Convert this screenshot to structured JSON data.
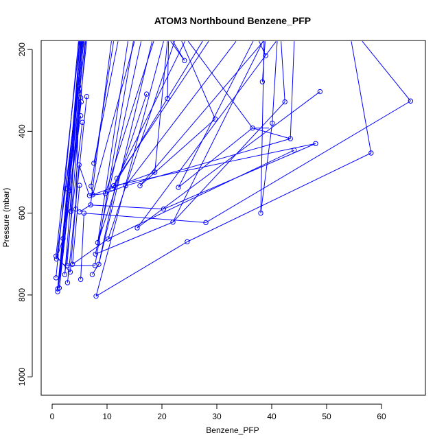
{
  "chart_data": {
    "type": "line",
    "title": "ATOM3 Northbound Benzene_PFP",
    "xlabel": "Benzene_PFP",
    "ylabel": "Pressure (mbar)",
    "xlim": [
      -2,
      68
    ],
    "ylim": [
      1045,
      178
    ],
    "y_reversed": true,
    "x_ticks": [
      0,
      10,
      20,
      30,
      40,
      50,
      60
    ],
    "y_ticks": [
      200,
      400,
      600,
      800,
      1000
    ],
    "grid": false,
    "line_color": "#0000ff",
    "marker": "open-circle",
    "points": [
      [
        0.7,
        705
      ],
      [
        0.8,
        712
      ],
      [
        0.7,
        758
      ],
      [
        1.0,
        785
      ],
      [
        1.0,
        792
      ],
      [
        1.3,
        783
      ],
      [
        2.0,
        662
      ],
      [
        2.3,
        750
      ],
      [
        2.5,
        540
      ],
      [
        2.7,
        728
      ],
      [
        2.8,
        770
      ],
      [
        3.1,
        545
      ],
      [
        3.3,
        744
      ],
      [
        3.4,
        596
      ],
      [
        3.7,
        725
      ],
      [
        4.3,
        590
      ],
      [
        4.8,
        290
      ],
      [
        4.8,
        302
      ],
      [
        4.9,
        482
      ],
      [
        5.0,
        532
      ],
      [
        5.0,
        597
      ],
      [
        5.2,
        318
      ],
      [
        5.3,
        328
      ],
      [
        5.5,
        378
      ],
      [
        5.2,
        362
      ],
      [
        5.2,
        762
      ],
      [
        5.8,
        600
      ],
      [
        6.3,
        315
      ],
      [
        6.8,
        557
      ],
      [
        7.0,
        580
      ],
      [
        7.1,
        534
      ],
      [
        7.3,
        750
      ],
      [
        7.4,
        555
      ],
      [
        7.6,
        478
      ],
      [
        7.8,
        728
      ],
      [
        7.9,
        700
      ],
      [
        8.0,
        803
      ],
      [
        8.3,
        672
      ],
      [
        8.5,
        725
      ],
      [
        9.7,
        552
      ],
      [
        10.2,
        663
      ],
      [
        10.9,
        540
      ],
      [
        11.2,
        533
      ],
      [
        11.8,
        515
      ],
      [
        13.4,
        533
      ],
      [
        15.5,
        636
      ],
      [
        16.0,
        533
      ],
      [
        17.2,
        309
      ],
      [
        18.7,
        500
      ],
      [
        20.3,
        590
      ],
      [
        21.0,
        320
      ],
      [
        22.0,
        622
      ],
      [
        23.0,
        537
      ],
      [
        24.1,
        227
      ],
      [
        24.6,
        670
      ],
      [
        28.0,
        623
      ],
      [
        29.7,
        370
      ],
      [
        36.5,
        392
      ],
      [
        38.0,
        600
      ],
      [
        38.3,
        279
      ],
      [
        38.9,
        215
      ],
      [
        40.1,
        380
      ],
      [
        42.4,
        328
      ],
      [
        43.4,
        418
      ],
      [
        44.1,
        446
      ],
      [
        48.0,
        430
      ],
      [
        48.8,
        303
      ],
      [
        58.1,
        453
      ],
      [
        65.3,
        326
      ]
    ],
    "segments": [
      [
        [
          0.7,
          705
        ],
        [
          5.0,
          180
        ]
      ],
      [
        [
          0.8,
          712
        ],
        [
          5.8,
          180
        ]
      ],
      [
        [
          1.0,
          785
        ],
        [
          5.3,
          180
        ]
      ],
      [
        [
          0.7,
          758
        ],
        [
          4.8,
          180
        ]
      ],
      [
        [
          1.0,
          792
        ],
        [
          6.0,
          180
        ]
      ],
      [
        [
          1.3,
          783
        ],
        [
          6.3,
          180
        ]
      ],
      [
        [
          1.3,
          783
        ],
        [
          5.1,
          180
        ]
      ],
      [
        [
          2.0,
          662
        ],
        [
          5.5,
          180
        ]
      ],
      [
        [
          2.3,
          750
        ],
        [
          5.7,
          180
        ]
      ],
      [
        [
          2.5,
          540
        ],
        [
          5.6,
          180
        ]
      ],
      [
        [
          2.7,
          728
        ],
        [
          6.1,
          180
        ]
      ],
      [
        [
          3.1,
          545
        ],
        [
          5.4,
          180
        ]
      ],
      [
        [
          3.4,
          596
        ],
        [
          4.9,
          180
        ]
      ],
      [
        [
          4.3,
          590
        ],
        [
          5.2,
          180
        ]
      ],
      [
        [
          0.8,
          712
        ],
        [
          4.9,
          290
        ]
      ],
      [
        [
          1.0,
          785
        ],
        [
          4.8,
          302
        ]
      ],
      [
        [
          1.3,
          783
        ],
        [
          5.2,
          318
        ]
      ],
      [
        [
          1.0,
          792
        ],
        [
          5.3,
          328
        ]
      ],
      [
        [
          2.3,
          750
        ],
        [
          5.5,
          378
        ]
      ],
      [
        [
          2.8,
          770
        ],
        [
          6.3,
          315
        ]
      ],
      [
        [
          3.3,
          744
        ],
        [
          4.9,
          482
        ]
      ],
      [
        [
          3.7,
          725
        ],
        [
          5.0,
          532
        ]
      ],
      [
        [
          2.0,
          662
        ],
        [
          5.2,
          362
        ]
      ],
      [
        [
          5.2,
          762
        ],
        [
          5.8,
          600
        ]
      ],
      [
        [
          4.9,
          482
        ],
        [
          6.8,
          557
        ]
      ],
      [
        [
          7.6,
          478
        ],
        [
          12.0,
          180
        ]
      ],
      [
        [
          7.1,
          534
        ],
        [
          11.2,
          180
        ]
      ],
      [
        [
          7.0,
          580
        ],
        [
          10.8,
          180
        ]
      ],
      [
        [
          7.4,
          555
        ],
        [
          15.0,
          180
        ]
      ],
      [
        [
          7.9,
          700
        ],
        [
          16.2,
          180
        ]
      ],
      [
        [
          7.8,
          728
        ],
        [
          14.8,
          180
        ]
      ],
      [
        [
          8.3,
          672
        ],
        [
          13.8,
          180
        ]
      ],
      [
        [
          8.5,
          725
        ],
        [
          18.2,
          180
        ]
      ],
      [
        [
          9.7,
          552
        ],
        [
          18.5,
          180
        ]
      ],
      [
        [
          10.2,
          663
        ],
        [
          22.3,
          180
        ]
      ],
      [
        [
          8.0,
          803
        ],
        [
          20.3,
          180
        ]
      ],
      [
        [
          10.9,
          540
        ],
        [
          27.4,
          180
        ]
      ],
      [
        [
          11.2,
          533
        ],
        [
          24.2,
          180
        ]
      ],
      [
        [
          11.8,
          515
        ],
        [
          28.5,
          180
        ]
      ],
      [
        [
          13.4,
          533
        ],
        [
          33.5,
          180
        ]
      ],
      [
        [
          15.5,
          636
        ],
        [
          40.8,
          180
        ]
      ],
      [
        [
          16.0,
          533
        ],
        [
          38.5,
          180
        ]
      ],
      [
        [
          18.7,
          500
        ],
        [
          21.0,
          180
        ]
      ],
      [
        [
          21.0,
          320
        ],
        [
          21.2,
          180
        ]
      ],
      [
        [
          24.1,
          227
        ],
        [
          22.0,
          180
        ]
      ],
      [
        [
          22.0,
          622
        ],
        [
          38.4,
          180
        ]
      ],
      [
        [
          23.0,
          537
        ],
        [
          36.6,
          180
        ]
      ],
      [
        [
          24.1,
          227
        ],
        [
          21.6,
          180
        ]
      ],
      [
        [
          29.7,
          370
        ],
        [
          23.6,
          180
        ]
      ],
      [
        [
          36.5,
          392
        ],
        [
          24.8,
          180
        ]
      ],
      [
        [
          38.0,
          600
        ],
        [
          38.6,
          180
        ]
      ],
      [
        [
          38.3,
          279
        ],
        [
          38.8,
          180
        ]
      ],
      [
        [
          38.9,
          215
        ],
        [
          37.7,
          180
        ]
      ],
      [
        [
          40.1,
          380
        ],
        [
          41.0,
          180
        ]
      ],
      [
        [
          42.4,
          328
        ],
        [
          41.7,
          180
        ]
      ],
      [
        [
          43.4,
          418
        ],
        [
          44.1,
          180
        ]
      ],
      [
        [
          58.1,
          453
        ],
        [
          54.5,
          180
        ]
      ],
      [
        [
          65.3,
          326
        ],
        [
          56.5,
          180
        ]
      ],
      [
        [
          5.8,
          600
        ],
        [
          28.0,
          623
        ]
      ],
      [
        [
          7.0,
          580
        ],
        [
          20.3,
          590
        ]
      ],
      [
        [
          8.3,
          672
        ],
        [
          17.2,
          309
        ]
      ],
      [
        [
          8.0,
          803
        ],
        [
          24.6,
          670
        ]
      ],
      [
        [
          10.2,
          663
        ],
        [
          44.1,
          446
        ]
      ],
      [
        [
          15.5,
          636
        ],
        [
          48.8,
          303
        ]
      ],
      [
        [
          20.3,
          590
        ],
        [
          48.0,
          430
        ]
      ],
      [
        [
          22.0,
          622
        ],
        [
          42.4,
          328
        ]
      ],
      [
        [
          24.6,
          670
        ],
        [
          58.1,
          453
        ]
      ],
      [
        [
          23.0,
          537
        ],
        [
          36.5,
          392
        ]
      ],
      [
        [
          28.0,
          623
        ],
        [
          65.3,
          326
        ]
      ],
      [
        [
          7.4,
          555
        ],
        [
          18.7,
          500
        ]
      ],
      [
        [
          5.0,
          597
        ],
        [
          7.0,
          580
        ]
      ],
      [
        [
          7.3,
          750
        ],
        [
          8.5,
          725
        ]
      ],
      [
        [
          0.7,
          705
        ],
        [
          3.3,
          744
        ]
      ],
      [
        [
          0.8,
          712
        ],
        [
          2.0,
          662
        ]
      ],
      [
        [
          2.7,
          728
        ],
        [
          7.8,
          728
        ]
      ],
      [
        [
          3.7,
          725
        ],
        [
          10.2,
          663
        ]
      ],
      [
        [
          7.1,
          534
        ],
        [
          7.4,
          555
        ]
      ],
      [
        [
          6.8,
          557
        ],
        [
          9.7,
          552
        ]
      ],
      [
        [
          9.7,
          552
        ],
        [
          13.4,
          533
        ]
      ],
      [
        [
          8.5,
          725
        ],
        [
          11.8,
          515
        ]
      ],
      [
        [
          29.7,
          370
        ],
        [
          16.0,
          533
        ]
      ],
      [
        [
          36.5,
          392
        ],
        [
          43.4,
          418
        ]
      ],
      [
        [
          38.0,
          600
        ],
        [
          40.1,
          380
        ]
      ],
      [
        [
          36.5,
          392
        ],
        [
          39.5,
          392
        ]
      ],
      [
        [
          11.2,
          533
        ],
        [
          48.0,
          430
        ]
      ],
      [
        [
          13.4,
          533
        ],
        [
          43.4,
          418
        ]
      ],
      [
        [
          7.9,
          700
        ],
        [
          22.0,
          622
        ]
      ]
    ]
  }
}
